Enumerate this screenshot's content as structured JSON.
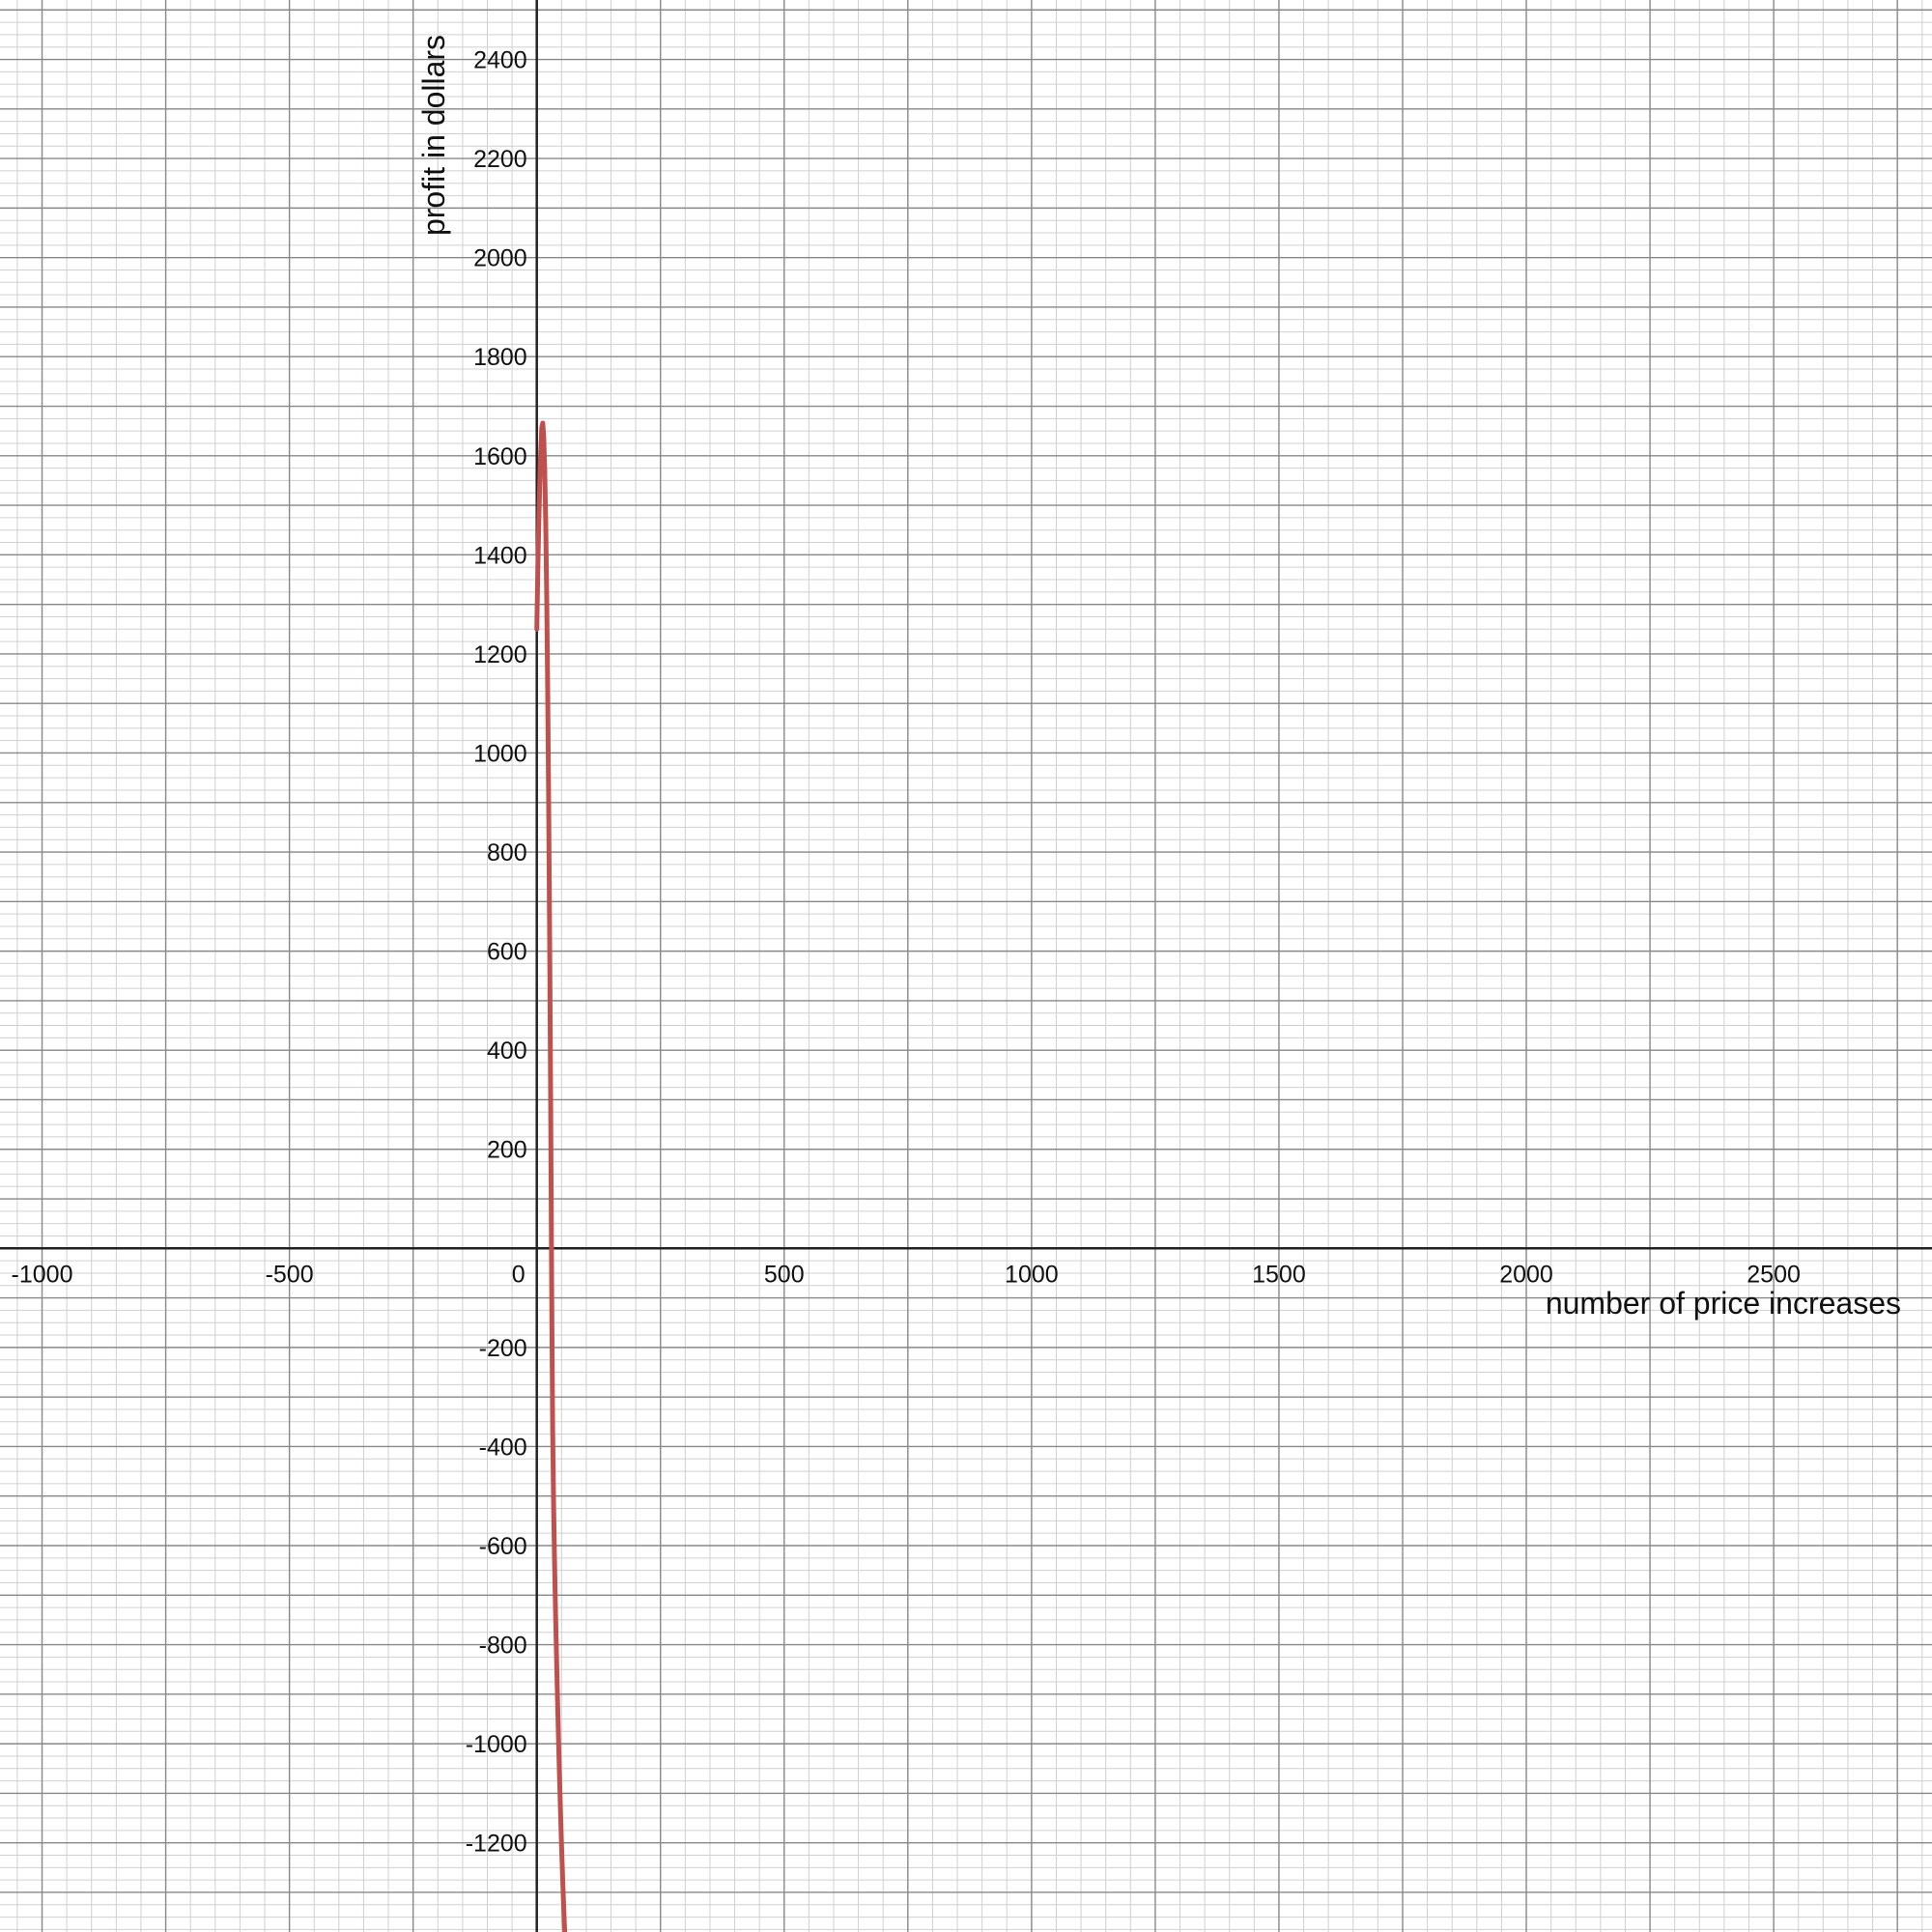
{
  "chart_data": {
    "type": "line",
    "title": "",
    "xlabel": "number of price increases",
    "ylabel": "profit in dollars",
    "xlim": [
      -1085,
      2820
    ],
    "ylim": [
      -1380,
      2520
    ],
    "grid": true,
    "x_ticks": [
      {
        "value": -1000,
        "label": "-1000"
      },
      {
        "value": -500,
        "label": "-500"
      },
      {
        "value": 0,
        "label": "0"
      },
      {
        "value": 500,
        "label": "500"
      },
      {
        "value": 1000,
        "label": "1000"
      },
      {
        "value": 1500,
        "label": "1500"
      },
      {
        "value": 2000,
        "label": "2000"
      },
      {
        "value": 2500,
        "label": "2500"
      }
    ],
    "y_ticks": [
      {
        "value": 2400,
        "label": "2400"
      },
      {
        "value": 2200,
        "label": "2200"
      },
      {
        "value": 2000,
        "label": "2000"
      },
      {
        "value": 1800,
        "label": "1800"
      },
      {
        "value": 1600,
        "label": "1600"
      },
      {
        "value": 1400,
        "label": "1400"
      },
      {
        "value": 1200,
        "label": "1200"
      },
      {
        "value": 1000,
        "label": "1000"
      },
      {
        "value": 800,
        "label": "800"
      },
      {
        "value": 600,
        "label": "600"
      },
      {
        "value": 400,
        "label": "400"
      },
      {
        "value": 200,
        "label": "200"
      },
      {
        "value": -200,
        "label": "-200"
      },
      {
        "value": -400,
        "label": "-400"
      },
      {
        "value": -600,
        "label": "-600"
      },
      {
        "value": -800,
        "label": "-800"
      },
      {
        "value": -1000,
        "label": "-1000"
      },
      {
        "value": -1200,
        "label": "-1200"
      }
    ],
    "series": [
      {
        "color": "#c0504d",
        "x": [
          0,
          2,
          4,
          6,
          8,
          10,
          12,
          14,
          16,
          18,
          20,
          22,
          24,
          26,
          28,
          30,
          32,
          34,
          36,
          38,
          40,
          42,
          44,
          46,
          48,
          50,
          52,
          54,
          56,
          58,
          60
        ],
        "y": [
          1250,
          1366,
          1464,
          1546,
          1610,
          1656,
          1666,
          1638,
          1572,
          1466,
          1318,
          1128,
          896,
          620,
          298,
          -70,
          -360,
          -520,
          -640,
          -740,
          -830,
          -915,
          -995,
          -1070,
          -1140,
          -1205,
          -1265,
          -1320,
          -1370,
          -1415,
          -1460
        ]
      }
    ]
  }
}
